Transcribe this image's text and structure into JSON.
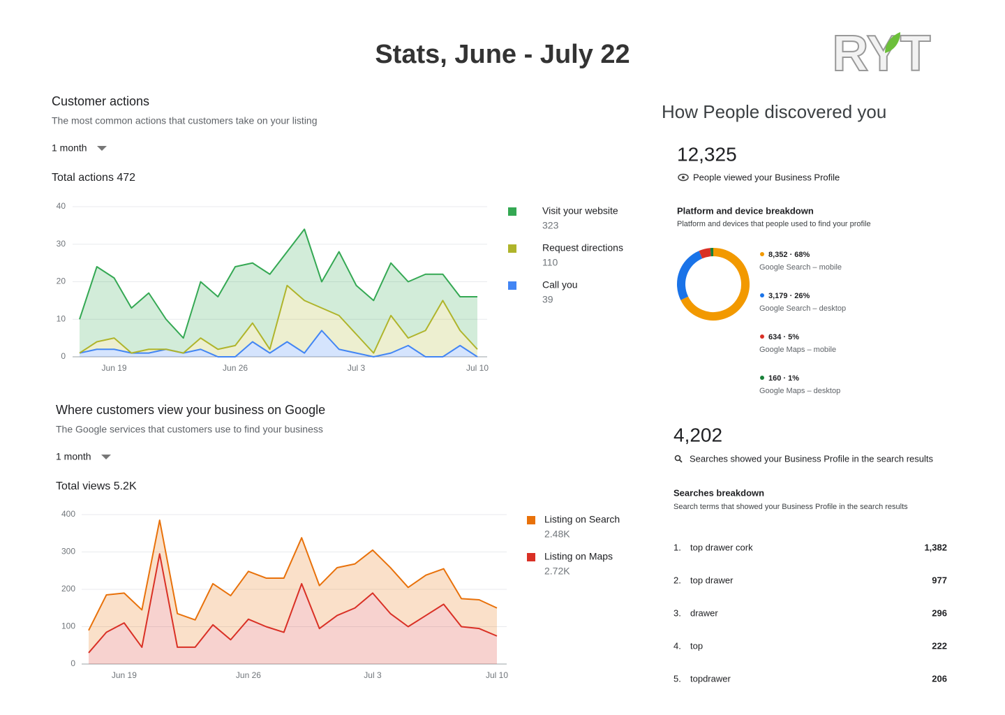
{
  "header": {
    "title": "Stats, June - July 22",
    "logo": "RYT"
  },
  "chart_data": [
    {
      "type": "area",
      "stacked": true,
      "grid": true,
      "title": "Customer actions",
      "subtitle": "The most common actions that customers take on your listing",
      "period": "1 month",
      "total": "Total actions 472",
      "categories": [
        null,
        null,
        "Jun 19",
        null,
        null,
        null,
        null,
        null,
        null,
        "Jun 26",
        null,
        null,
        null,
        null,
        null,
        null,
        "Jul 3",
        null,
        null,
        null,
        null,
        null,
        null,
        "Jul 10"
      ],
      "ylim": [
        0,
        40
      ],
      "yticks": [
        0,
        10,
        20,
        30,
        40
      ],
      "series": [
        {
          "name": "Visit your website",
          "summary": "323",
          "color": "#34a853",
          "values": [
            9,
            20,
            16,
            12,
            15,
            8,
            4,
            15,
            14,
            21,
            16,
            20,
            9,
            19,
            7,
            17,
            13,
            14,
            14,
            15,
            15,
            7,
            9,
            14
          ]
        },
        {
          "name": "Request directions",
          "summary": "110",
          "color": "#afb42b",
          "values": [
            0,
            2,
            3,
            0,
            1,
            0,
            0,
            3,
            2,
            3,
            5,
            1,
            15,
            14,
            6,
            9,
            5,
            1,
            10,
            2,
            7,
            15,
            4,
            2
          ]
        },
        {
          "name": "Call you",
          "summary": "39",
          "color": "#4285f4",
          "values": [
            1,
            2,
            2,
            1,
            1,
            2,
            1,
            2,
            0,
            0,
            4,
            1,
            4,
            1,
            7,
            2,
            1,
            0,
            1,
            3,
            0,
            0,
            3,
            0
          ]
        }
      ]
    },
    {
      "type": "area",
      "stacked": true,
      "grid": true,
      "title": "Where customers view your business on Google",
      "subtitle": "The Google services that customers use to find your business",
      "period": "1 month",
      "total": "Total views 5.2K",
      "categories": [
        null,
        null,
        "Jun 19",
        null,
        null,
        null,
        null,
        null,
        null,
        "Jun 26",
        null,
        null,
        null,
        null,
        null,
        null,
        "Jul 3",
        null,
        null,
        null,
        null,
        null,
        null,
        "Jul 10"
      ],
      "ylim": [
        0,
        400
      ],
      "yticks": [
        0,
        100,
        200,
        300,
        400
      ],
      "series": [
        {
          "name": "Listing on Search",
          "summary": "2.48K",
          "color": "#e8710a",
          "values": [
            60,
            100,
            80,
            100,
            90,
            90,
            73,
            110,
            118,
            128,
            130,
            145,
            123,
            115,
            128,
            118,
            115,
            123,
            105,
            108,
            95,
            75,
            77,
            75
          ]
        },
        {
          "name": "Listing on Maps",
          "summary": "2.72K",
          "color": "#d93025",
          "values": [
            30,
            85,
            110,
            45,
            295,
            45,
            45,
            105,
            65,
            120,
            100,
            85,
            215,
            95,
            130,
            150,
            190,
            135,
            100,
            130,
            160,
            100,
            95,
            75
          ]
        }
      ]
    },
    {
      "type": "donut",
      "title": "Platform and device breakdown",
      "subtitle": "Platform and devices that people used to find your profile",
      "categories": [
        "Google Search – mobile",
        "Google Search – desktop",
        "Google Maps – mobile",
        "Google Maps – desktop"
      ],
      "values": [
        8352,
        3179,
        634,
        160
      ],
      "value_labels": [
        "8,352 · 68%",
        "3,179 · 26%",
        "634 · 5%",
        "160 · 1%"
      ],
      "colors": [
        "#f29900",
        "#1a73e8",
        "#d93025",
        "#188038"
      ]
    }
  ],
  "discovery": {
    "title": "How People discovered you",
    "views": "12,325",
    "views_label": "People viewed your Business Profile",
    "searches": "4,202",
    "searches_label": "Searches showed your Business Profile in the search results",
    "breakdown_title": "Searches breakdown",
    "breakdown_subtitle": "Search terms that showed your Business Profile in the search results",
    "rows": [
      [
        "1.",
        "top drawer cork",
        "1,382"
      ],
      [
        "2.",
        "top drawer",
        "977"
      ],
      [
        "3.",
        "drawer",
        "296"
      ],
      [
        "4.",
        "top",
        "222"
      ],
      [
        "5.",
        "topdrawer",
        "206"
      ]
    ]
  }
}
